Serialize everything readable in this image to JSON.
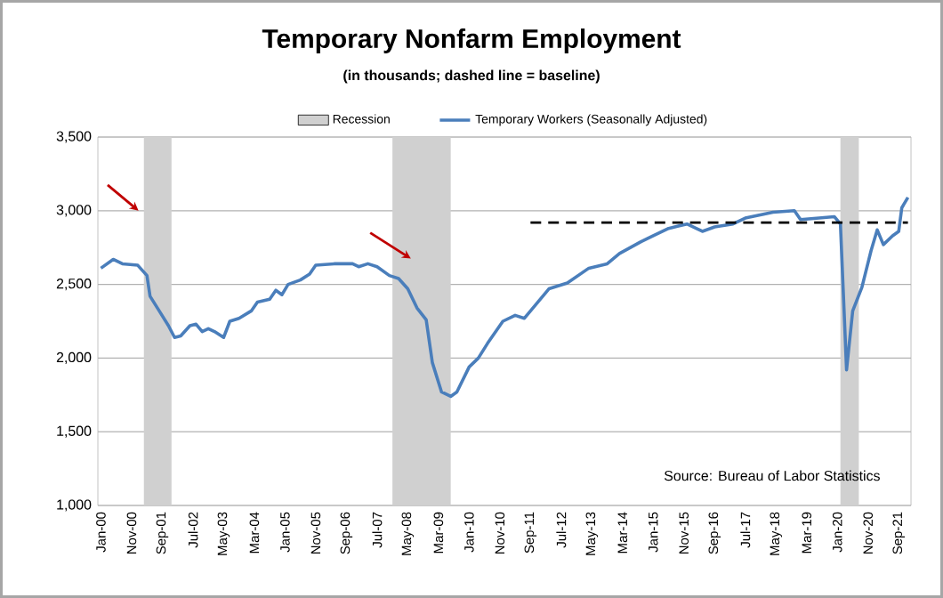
{
  "chart_data": {
    "type": "line",
    "title": "Temporary Nonfarm Employment",
    "subtitle": "(in thousands; dashed line = baseline)",
    "annotations": [
      "Source: Bureau of Labor Statistics"
    ],
    "xlim": [
      "1999-12",
      "2022-01"
    ],
    "xticks": [
      {
        "value": "2000-01",
        "label": "Jan-00"
      },
      {
        "value": "2000-11",
        "label": "Nov-00"
      },
      {
        "value": "2001-09",
        "label": "Sep-01"
      },
      {
        "value": "2002-07",
        "label": "Jul-02"
      },
      {
        "value": "2003-05",
        "label": "May-03"
      },
      {
        "value": "2004-03",
        "label": "Mar-04"
      },
      {
        "value": "2005-01",
        "label": "Jan-05"
      },
      {
        "value": "2005-11",
        "label": "Nov-05"
      },
      {
        "value": "2006-09",
        "label": "Sep-06"
      },
      {
        "value": "2007-07",
        "label": "Jul-07"
      },
      {
        "value": "2008-05",
        "label": "May-08"
      },
      {
        "value": "2009-03",
        "label": "Mar-09"
      },
      {
        "value": "2010-01",
        "label": "Jan-10"
      },
      {
        "value": "2010-11",
        "label": "Nov-10"
      },
      {
        "value": "2011-09",
        "label": "Sep-11"
      },
      {
        "value": "2012-07",
        "label": "Jul-12"
      },
      {
        "value": "2013-05",
        "label": "May-13"
      },
      {
        "value": "2014-03",
        "label": "Mar-14"
      },
      {
        "value": "2015-01",
        "label": "Jan-15"
      },
      {
        "value": "2015-11",
        "label": "Nov-15"
      },
      {
        "value": "2016-09",
        "label": "Sep-16"
      },
      {
        "value": "2017-07",
        "label": "Jul-17"
      },
      {
        "value": "2018-05",
        "label": "May-18"
      },
      {
        "value": "2019-03",
        "label": "Mar-19"
      },
      {
        "value": "2020-01",
        "label": "Jan-20"
      },
      {
        "value": "2020-11",
        "label": "Nov-20"
      },
      {
        "value": "2021-09",
        "label": "Sep-21"
      }
    ],
    "ylim": [
      1000,
      3500
    ],
    "yticks": [
      {
        "value": 1000,
        "label": "1,000"
      },
      {
        "value": 1500,
        "label": "1,500"
      },
      {
        "value": 2000,
        "label": "2,000"
      },
      {
        "value": 2500,
        "label": "2,500"
      },
      {
        "value": 3000,
        "label": "3,000"
      },
      {
        "value": 3500,
        "label": "3,500"
      }
    ],
    "grid": "y",
    "legend": "top",
    "bands": [
      {
        "axis": "x",
        "from": "2001-03",
        "to": "2001-12",
        "label": "Recession",
        "color": "#d0d0d0"
      },
      {
        "axis": "x",
        "from": "2007-12",
        "to": "2009-07",
        "color": "#d0d0d0"
      },
      {
        "axis": "x",
        "from": "2020-02",
        "to": "2020-08",
        "color": "#d0d0d0"
      }
    ],
    "series": [
      {
        "name": "Temporary Workers (Seasonally Adjusted)",
        "color": "#4a7ebb",
        "line_style": "solid",
        "x": [
          "2000-01",
          "2000-05",
          "2000-08",
          "2001-01",
          "2001-04",
          "2001-05",
          "2001-08",
          "2001-11",
          "2002-01",
          "2002-03",
          "2002-06",
          "2002-08",
          "2002-10",
          "2002-12",
          "2003-02",
          "2003-05",
          "2003-07",
          "2003-10",
          "2004-02",
          "2004-04",
          "2004-08",
          "2004-10",
          "2004-12",
          "2005-02",
          "2005-06",
          "2005-09",
          "2005-11",
          "2006-05",
          "2006-11",
          "2007-01",
          "2007-04",
          "2007-07",
          "2007-11",
          "2008-02",
          "2008-05",
          "2008-08",
          "2008-11",
          "2009-01",
          "2009-04",
          "2009-07",
          "2009-09",
          "2010-01",
          "2010-04",
          "2010-07",
          "2010-12",
          "2011-04",
          "2011-07",
          "2011-11",
          "2012-03",
          "2012-09",
          "2013-04",
          "2013-10",
          "2014-02",
          "2014-09",
          "2015-01",
          "2015-06",
          "2015-12",
          "2016-05",
          "2016-09",
          "2017-03",
          "2017-07",
          "2018-04",
          "2018-11",
          "2019-01",
          "2019-07",
          "2019-12",
          "2020-02",
          "2020-04",
          "2020-06",
          "2020-09",
          "2020-12",
          "2021-02",
          "2021-04",
          "2021-07",
          "2021-09",
          "2021-10",
          "2021-12"
        ],
        "values": [
          2610,
          2670,
          2640,
          2630,
          2560,
          2420,
          2320,
          2220,
          2140,
          2150,
          2220,
          2230,
          2180,
          2200,
          2180,
          2140,
          2250,
          2270,
          2320,
          2380,
          2400,
          2460,
          2430,
          2500,
          2530,
          2570,
          2630,
          2640,
          2640,
          2620,
          2640,
          2620,
          2560,
          2540,
          2470,
          2340,
          2260,
          1970,
          1770,
          1740,
          1770,
          1940,
          2000,
          2100,
          2250,
          2290,
          2270,
          2370,
          2470,
          2510,
          2610,
          2640,
          2710,
          2790,
          2830,
          2880,
          2910,
          2860,
          2890,
          2910,
          2950,
          2990,
          3000,
          2940,
          2950,
          2960,
          2910,
          1920,
          2320,
          2480,
          2730,
          2870,
          2770,
          2830,
          2860,
          3020,
          3090
        ]
      },
      {
        "color": "#000000",
        "line_style": "dashed",
        "x": [
          "2011-09",
          "2021-12"
        ],
        "values": [
          2920,
          2920
        ]
      }
    ]
  }
}
